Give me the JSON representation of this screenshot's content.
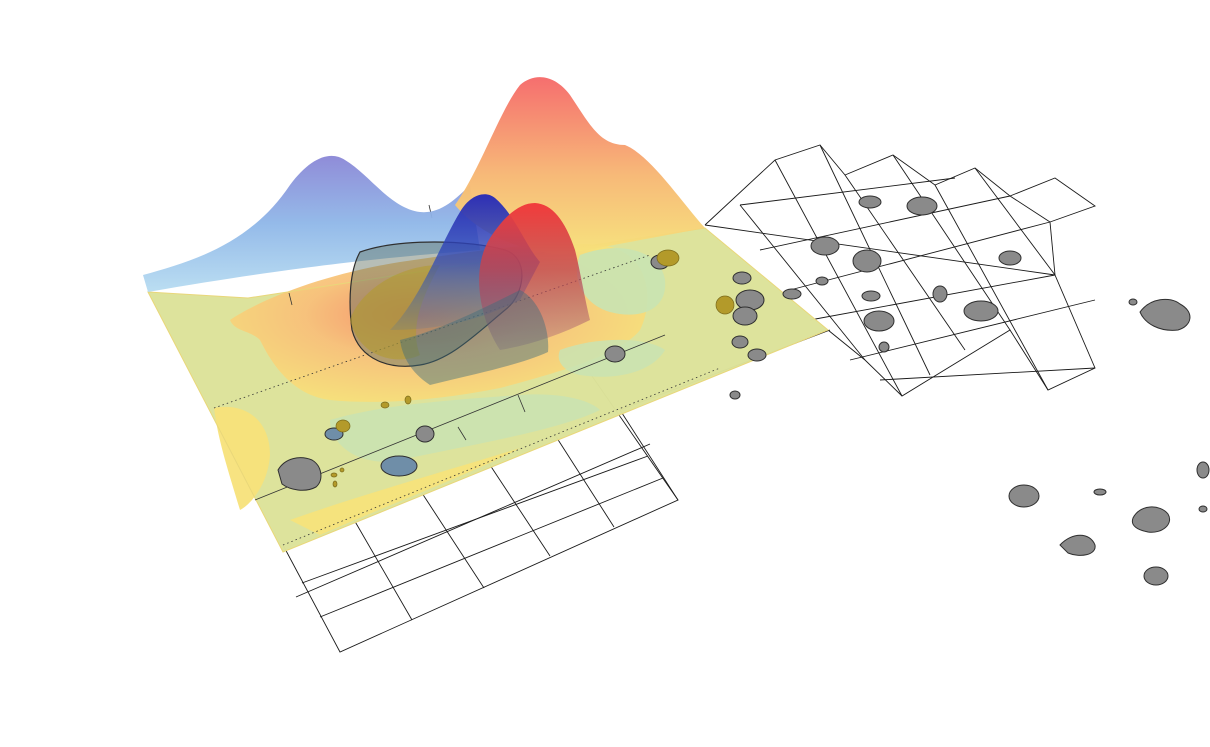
{
  "scene": {
    "type": "3d-density-surface-over-grid-map",
    "palette": {
      "yellow": "#f7e27a",
      "green": "#c9e3b3",
      "orange": "#f6a565",
      "red": "#f56a6a",
      "blue_light": "#9fc6ea",
      "blue_dark": "#2d2fb5",
      "blob_fill": "#8a8a8a",
      "blob_stroke": "#2f2f2f",
      "olive": "#b39a2a",
      "grid_line": "#1a1a1a"
    },
    "density_peaks": [
      {
        "name": "blue-left-peak",
        "colour": "#8f90d8"
      },
      {
        "name": "red-right-peak",
        "colour": "#f36f73"
      },
      {
        "name": "blue-center-peak",
        "colour": "#3234b8"
      },
      {
        "name": "red-center-peak",
        "colour": "#e83a3a"
      }
    ]
  }
}
